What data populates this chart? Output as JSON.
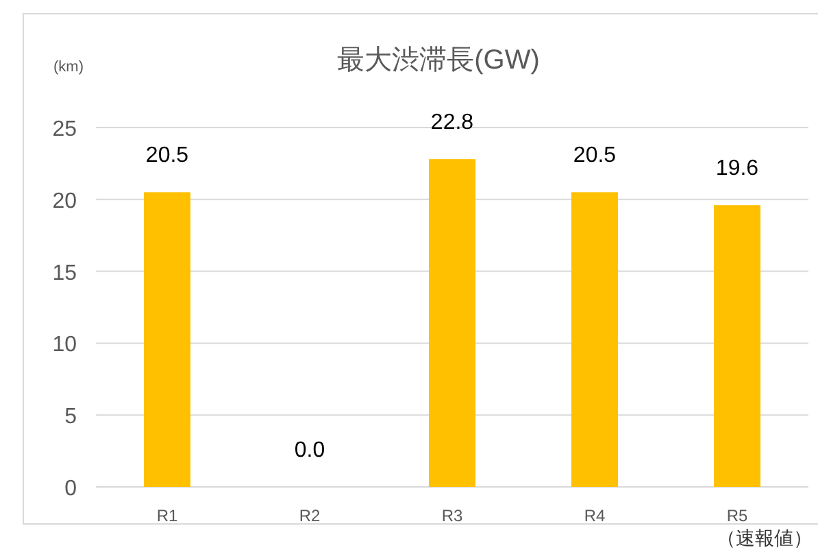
{
  "chart_data": {
    "type": "bar",
    "title": "最大渋滞長(GW)",
    "ylabel": "(km)",
    "categories": [
      "R1",
      "R2",
      "R3",
      "R4",
      "R5"
    ],
    "values": [
      20.5,
      0.0,
      22.8,
      20.5,
      19.6
    ],
    "color": "#ffc000",
    "ylim": [
      0,
      25
    ],
    "yticks": [
      0,
      5,
      10,
      15,
      20,
      25
    ],
    "grid": "y",
    "value_labels": [
      "20.5",
      "0.0",
      "22.8",
      "20.5",
      "19.6"
    ],
    "annotations": [
      "（速報値）"
    ]
  }
}
